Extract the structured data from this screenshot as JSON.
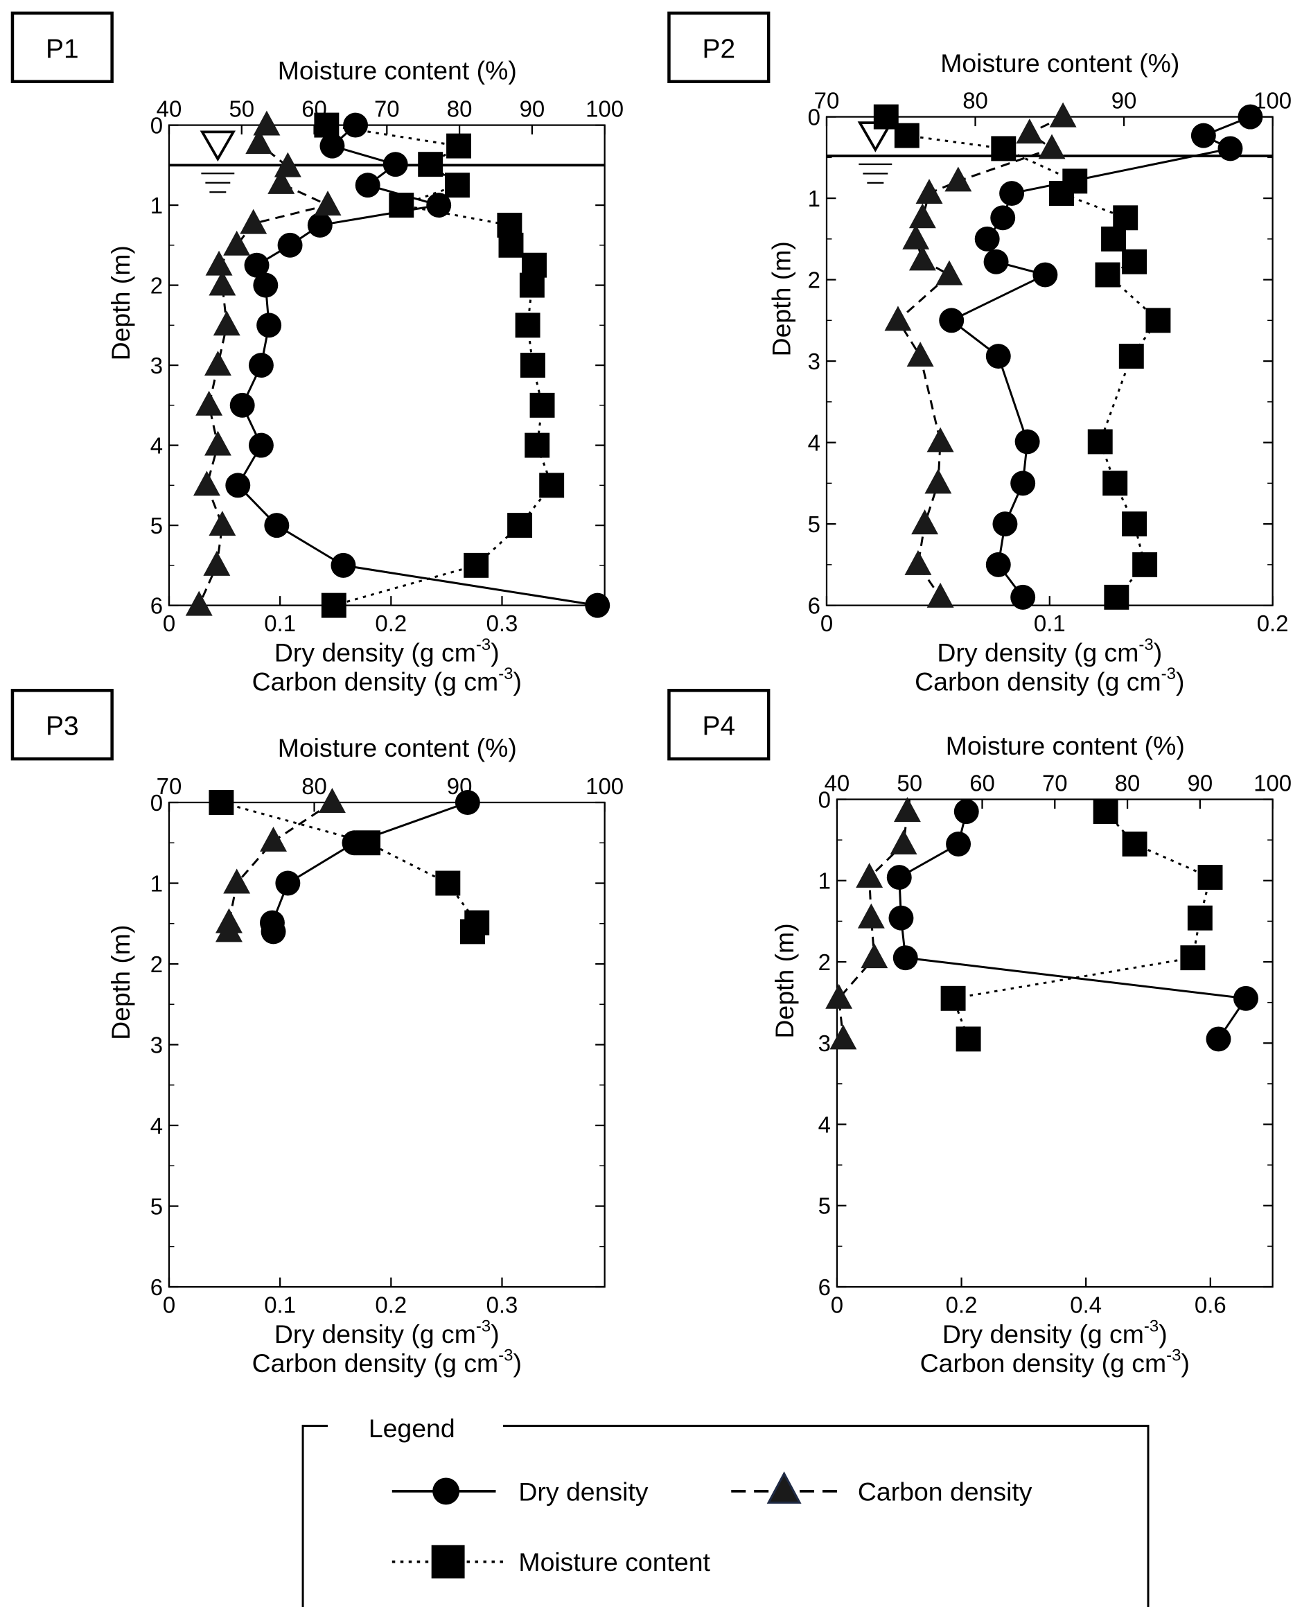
{
  "chart_data": [
    {
      "type": "line",
      "panel_label": "P1",
      "top_axis_label": "Moisture content (%)",
      "bottom_axis_label_1": {
        "text": "Dry density (g cm",
        "sup": "-3",
        "end": ")"
      },
      "bottom_axis_label_2": {
        "text": "Carbon density (g cm",
        "sup": "-3",
        "end": ")"
      },
      "ylabel": "Depth (m)",
      "ylim": [
        0,
        6
      ],
      "y_ticks": [
        "0",
        "1",
        "2",
        "3",
        "4",
        "5",
        "6"
      ],
      "moisture_range": [
        40,
        100
      ],
      "moisture_ticks": [
        "40",
        "50",
        "60",
        "70",
        "80",
        "90",
        "100"
      ],
      "density_range": [
        0,
        0.3925
      ],
      "density_ticks": [
        "0",
        "0.1",
        "0.2",
        "0.3"
      ],
      "water_table_depth": 0.5,
      "series": [
        {
          "name": "Dry density",
          "axis": "density",
          "marker": "circle",
          "line": "solid",
          "depth": [
            0,
            0.26,
            0.49,
            0.75,
            1.0,
            1.25,
            1.5,
            1.75,
            2.0,
            2.5,
            3.0,
            3.5,
            4.0,
            4.5,
            5.0,
            5.5,
            6.0
          ],
          "values": [
            0.168,
            0.147,
            0.204,
            0.179,
            0.243,
            0.136,
            0.109,
            0.079,
            0.087,
            0.09,
            0.083,
            0.066,
            0.083,
            0.062,
            0.097,
            0.157,
            0.386
          ]
        },
        {
          "name": "Carbon density",
          "axis": "density",
          "marker": "triangle",
          "line": "dashed",
          "depth": [
            0,
            0.23,
            0.52,
            0.73,
            1.0,
            1.23,
            1.5,
            1.75,
            2.0,
            2.5,
            3.0,
            3.5,
            4.0,
            4.5,
            5.0,
            5.5,
            6.0
          ],
          "values": [
            0.088,
            0.081,
            0.107,
            0.101,
            0.143,
            0.076,
            0.061,
            0.045,
            0.048,
            0.052,
            0.044,
            0.036,
            0.044,
            0.034,
            0.048,
            0.043,
            0.027
          ]
        },
        {
          "name": "Moisture content",
          "axis": "moisture",
          "marker": "square",
          "line": "dotted",
          "depth": [
            0,
            0.26,
            0.49,
            0.75,
            1.0,
            1.25,
            1.5,
            1.75,
            2.0,
            2.5,
            3.0,
            3.5,
            4.0,
            4.5,
            5.0,
            5.5,
            6.0
          ],
          "values": [
            61.7,
            79.9,
            76.0,
            79.7,
            72.0,
            86.9,
            87.1,
            90.3,
            90.0,
            89.4,
            90.1,
            91.4,
            90.7,
            92.7,
            88.3,
            82.3,
            62.7
          ]
        }
      ]
    },
    {
      "type": "line",
      "panel_label": "P2",
      "top_axis_label": "Moisture content (%)",
      "bottom_axis_label_1": {
        "text": "Dry density (g cm",
        "sup": "-3",
        "end": ")"
      },
      "bottom_axis_label_2": {
        "text": "Carbon density (g cm",
        "sup": "-3",
        "end": ")"
      },
      "ylabel": "Depth (m)",
      "ylim": [
        0,
        6
      ],
      "y_ticks": [
        "0",
        "1",
        "2",
        "3",
        "4",
        "5",
        "6"
      ],
      "moisture_range": [
        70,
        100
      ],
      "moisture_ticks": [
        "70",
        "80",
        "90",
        "100"
      ],
      "density_range": [
        0,
        0.2
      ],
      "density_ticks": [
        "0",
        "0.1",
        "0.2"
      ],
      "water_table_depth": 0.48,
      "series": [
        {
          "name": "Dry density",
          "axis": "density",
          "marker": "circle",
          "line": "solid",
          "depth": [
            0,
            0.23,
            0.39,
            0.94,
            1.24,
            1.5,
            1.78,
            1.94,
            2.5,
            2.94,
            3.99,
            4.5,
            5.0,
            5.5,
            5.9
          ],
          "values": [
            0.19,
            0.169,
            0.181,
            0.083,
            0.079,
            0.072,
            0.076,
            0.098,
            0.056,
            0.077,
            0.09,
            0.088,
            0.08,
            0.077,
            0.088
          ]
        },
        {
          "name": "Carbon density",
          "axis": "density",
          "marker": "triangle",
          "line": "dashed",
          "depth": [
            0,
            0.2,
            0.39,
            0.79,
            0.94,
            1.24,
            1.5,
            1.76,
            1.94,
            2.5,
            2.94,
            3.99,
            4.5,
            5.0,
            5.5,
            5.9
          ],
          "values": [
            0.106,
            0.091,
            0.101,
            0.059,
            0.046,
            0.043,
            0.04,
            0.043,
            0.055,
            0.032,
            0.042,
            0.051,
            0.05,
            0.044,
            0.041,
            0.051
          ]
        },
        {
          "name": "Moisture content",
          "axis": "moisture",
          "marker": "square",
          "line": "dotted",
          "depth": [
            0,
            0.23,
            0.39,
            0.79,
            0.94,
            1.24,
            1.5,
            1.78,
            1.94,
            2.5,
            2.94,
            3.99,
            4.5,
            5.0,
            5.5,
            5.9
          ],
          "values": [
            74.0,
            75.4,
            81.9,
            86.7,
            85.8,
            90.1,
            89.3,
            90.7,
            88.9,
            92.3,
            90.5,
            88.4,
            89.4,
            90.7,
            91.4,
            89.5
          ]
        }
      ]
    },
    {
      "type": "line",
      "panel_label": "P3",
      "top_axis_label": "Moisture content (%)",
      "bottom_axis_label_1": {
        "text": "Dry density (g cm",
        "sup": "-3",
        "end": ")"
      },
      "bottom_axis_label_2": {
        "text": "Carbon density (g cm",
        "sup": "-3",
        "end": ")"
      },
      "ylabel": "Depth (m)",
      "ylim": [
        0,
        6
      ],
      "y_ticks": [
        "0",
        "1",
        "2",
        "3",
        "4",
        "5",
        "6"
      ],
      "moisture_range": [
        70,
        100
      ],
      "moisture_ticks": [
        "70",
        "80",
        "90",
        "100"
      ],
      "density_range": [
        0,
        0.3925
      ],
      "density_ticks": [
        "0",
        "0.1",
        "0.2",
        "0.3"
      ],
      "water_table_depth": null,
      "series": [
        {
          "name": "Dry density",
          "axis": "density",
          "marker": "circle",
          "line": "solid",
          "depth": [
            0,
            0.5,
            1.0,
            1.49,
            1.6
          ],
          "values": [
            0.269,
            0.167,
            0.107,
            0.093,
            0.094
          ]
        },
        {
          "name": "Carbon density",
          "axis": "density",
          "marker": "triangle",
          "line": "dashed",
          "depth": [
            0,
            0.48,
            1.0,
            1.49,
            1.6
          ],
          "values": [
            0.147,
            0.094,
            0.061,
            0.054,
            0.054
          ]
        },
        {
          "name": "Moisture content",
          "axis": "moisture",
          "marker": "square",
          "line": "dotted",
          "depth": [
            0,
            0.5,
            1.0,
            1.49,
            1.6
          ],
          "values": [
            73.6,
            83.7,
            89.2,
            91.2,
            90.9
          ]
        }
      ]
    },
    {
      "type": "line",
      "panel_label": "P4",
      "top_axis_label": "Moisture content (%)",
      "bottom_axis_label_1": {
        "text": "Dry density (g cm",
        "sup": "-3",
        "end": ")"
      },
      "bottom_axis_label_2": {
        "text": "Carbon density (g cm",
        "sup": "-3",
        "end": ")"
      },
      "ylabel": "Depth (m)",
      "ylim": [
        0,
        6
      ],
      "y_ticks": [
        "0",
        "1",
        "2",
        "3",
        "4",
        "5",
        "6"
      ],
      "moisture_range": [
        40,
        100
      ],
      "moisture_ticks": [
        "40",
        "50",
        "60",
        "70",
        "80",
        "90",
        "100"
      ],
      "density_range": [
        0,
        0.7
      ],
      "density_ticks": [
        "0",
        "0.2",
        "0.4",
        "0.6"
      ],
      "water_table_depth": null,
      "series": [
        {
          "name": "Dry density",
          "axis": "density",
          "marker": "circle",
          "line": "solid",
          "depth": [
            0.15,
            0.55,
            0.96,
            1.46,
            1.95,
            2.45,
            2.95
          ],
          "values": [
            0.208,
            0.195,
            0.1,
            0.103,
            0.11,
            0.657,
            0.613
          ]
        },
        {
          "name": "Carbon density",
          "axis": "density",
          "marker": "triangle",
          "line": "dashed",
          "depth": [
            0.15,
            0.55,
            0.96,
            1.46,
            1.95,
            2.45,
            2.95
          ],
          "values": [
            0.113,
            0.107,
            0.052,
            0.055,
            0.06,
            0.003,
            0.01
          ]
        },
        {
          "name": "Moisture content",
          "axis": "moisture",
          "marker": "square",
          "line": "dotted",
          "depth": [
            0.15,
            0.55,
            0.96,
            1.46,
            1.95,
            2.45,
            2.95
          ],
          "values": [
            77.0,
            81.0,
            91.4,
            90.0,
            89.0,
            56.0,
            58.1
          ]
        }
      ]
    }
  ],
  "legend": {
    "title": "Legend",
    "items": [
      {
        "label": "Dry density",
        "marker": "circle",
        "line": "solid"
      },
      {
        "label": "Carbon density",
        "marker": "triangle",
        "line": "dashed"
      },
      {
        "label": "Moisture content",
        "marker": "square",
        "line": "dotted"
      }
    ]
  },
  "colors": {
    "ink": "#000000",
    "triangle_fill": "#1a1a1a",
    "legend_triangle_outline": "#1f2a44"
  }
}
